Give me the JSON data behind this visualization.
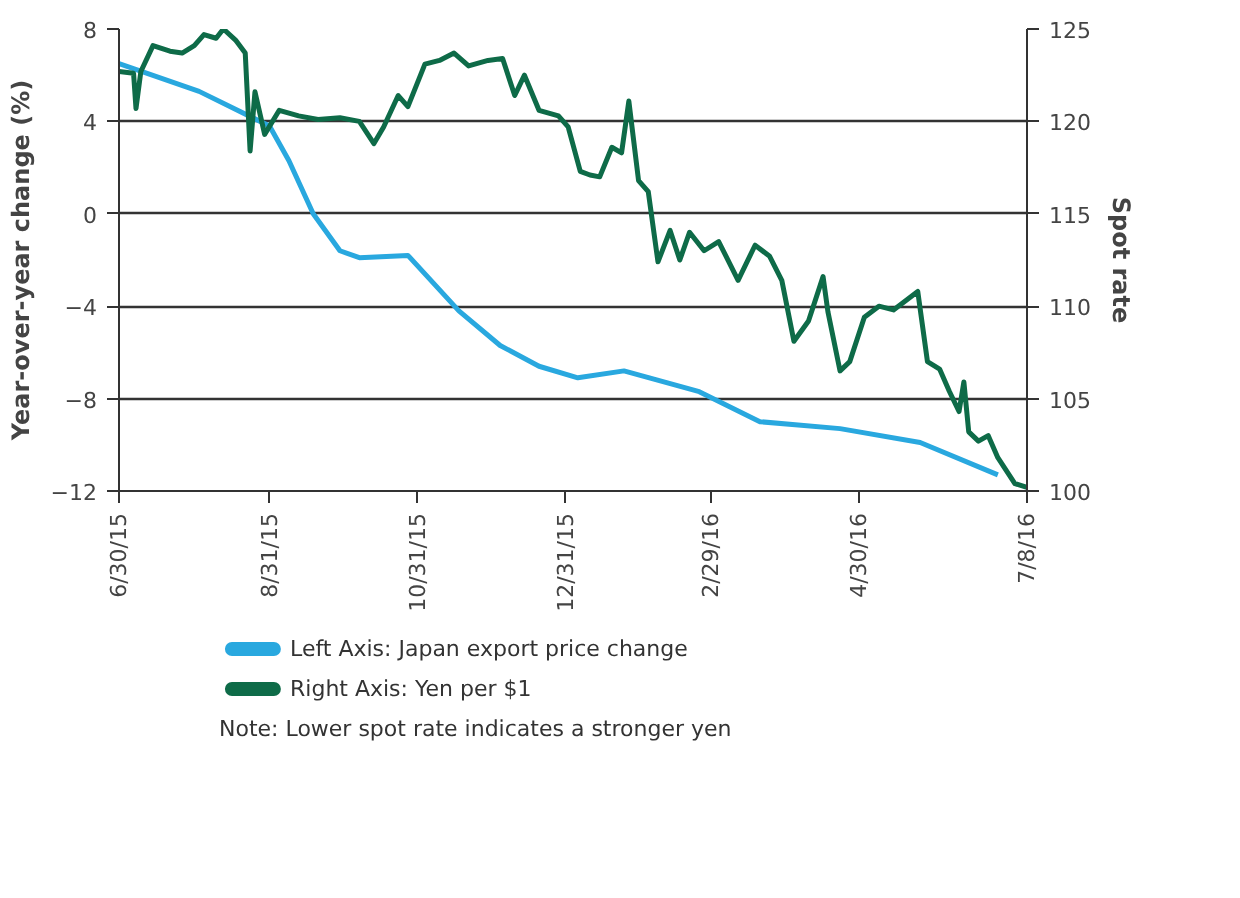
{
  "chart_data": {
    "type": "line",
    "ylabel": "Year-over-year change (%)",
    "y2label": "Spot rate",
    "xlim": [
      "2015-06-30",
      "2016-07-08"
    ],
    "xticks": [
      {
        "value": "2015-06-30",
        "label": "6/30/15"
      },
      {
        "value": "2015-08-31",
        "label": "8/31/15"
      },
      {
        "value": "2015-10-31",
        "label": "10/31/15"
      },
      {
        "value": "2015-12-31",
        "label": "12/31/15"
      },
      {
        "value": "2016-02-29",
        "label": "2/29/16"
      },
      {
        "value": "2016-04-30",
        "label": "4/30/16"
      },
      {
        "value": "2016-07-08",
        "label": "7/8/16"
      }
    ],
    "ylim": [
      -12,
      8
    ],
    "yticks": [
      -12,
      -8,
      -4,
      0,
      4,
      8
    ],
    "y2lim": [
      100,
      125
    ],
    "y2ticks": [
      100,
      105,
      110,
      115,
      120,
      125
    ],
    "grid": "y",
    "legend": "bottom",
    "marker": "none",
    "line_style": "solid",
    "series": [
      {
        "name": "Left Axis: Japan export price change",
        "color": "#29a8df",
        "x": [
          "2015-06-30",
          "2015-08-02",
          "2015-08-31",
          "2015-09-08",
          "2015-09-18",
          "2015-09-29",
          "2015-10-07",
          "2015-10-27",
          "2015-11-17",
          "2015-12-04",
          "2015-12-20",
          "2016-01-05",
          "2016-01-24",
          "2016-02-24",
          "2016-03-20",
          "2016-04-22",
          "2016-05-25",
          "2016-06-26"
        ],
        "values": [
          6.5,
          5.3,
          3.8,
          2.3,
          0.0,
          -1.6,
          -1.9,
          -1.8,
          -4.2,
          -5.7,
          -6.6,
          -7.1,
          -6.8,
          -7.7,
          -9.0,
          -9.3,
          -9.9,
          -11.3
        ]
      },
      {
        "name": "Right Axis: Yen per $1",
        "color": "#0e6b48",
        "axis": "y2",
        "x": [
          "2015-06-30",
          "2015-07-06",
          "2015-07-07",
          "2015-07-09",
          "2015-07-14",
          "2015-07-21",
          "2015-07-26",
          "2015-07-31",
          "2015-08-04",
          "2015-08-09",
          "2015-08-12",
          "2015-08-17",
          "2015-08-21",
          "2015-08-23",
          "2015-08-25",
          "2015-08-29",
          "2015-09-04",
          "2015-09-12",
          "2015-09-20",
          "2015-09-29",
          "2015-10-07",
          "2015-10-13",
          "2015-10-17",
          "2015-10-23",
          "2015-10-27",
          "2015-11-03",
          "2015-11-09",
          "2015-11-15",
          "2015-11-21",
          "2015-11-29",
          "2015-12-05",
          "2015-12-10",
          "2015-12-14",
          "2015-12-20",
          "2015-12-28",
          "2016-01-01",
          "2016-01-06",
          "2016-01-10",
          "2016-01-14",
          "2016-01-19",
          "2016-01-23",
          "2016-01-26",
          "2016-01-30",
          "2016-02-03",
          "2016-02-07",
          "2016-02-12",
          "2016-02-16",
          "2016-02-20",
          "2016-02-26",
          "2016-03-03",
          "2016-03-11",
          "2016-03-18",
          "2016-03-24",
          "2016-03-29",
          "2016-04-03",
          "2016-04-09",
          "2016-04-15",
          "2016-04-17",
          "2016-04-22",
          "2016-04-26",
          "2016-05-02",
          "2016-05-08",
          "2016-05-14",
          "2016-05-24",
          "2016-05-28",
          "2016-06-02",
          "2016-06-06",
          "2016-06-10",
          "2016-06-12",
          "2016-06-14",
          "2016-06-18",
          "2016-06-22",
          "2016-06-26",
          "2016-07-03",
          "2016-07-08"
        ],
        "values": [
          122.7,
          122.6,
          120.7,
          122.7,
          124.1,
          123.8,
          123.7,
          124.1,
          124.7,
          124.5,
          125.0,
          124.4,
          123.7,
          118.4,
          121.6,
          119.3,
          120.6,
          120.3,
          120.1,
          120.2,
          120.0,
          118.8,
          119.7,
          121.4,
          120.8,
          123.1,
          123.3,
          123.7,
          123.0,
          123.3,
          123.4,
          121.4,
          122.5,
          120.6,
          120.3,
          119.7,
          117.3,
          117.1,
          117.0,
          118.6,
          118.3,
          121.1,
          116.8,
          116.2,
          112.4,
          114.1,
          112.5,
          114.0,
          113.0,
          113.5,
          111.4,
          113.3,
          112.7,
          111.4,
          108.1,
          109.2,
          111.6,
          109.7,
          106.5,
          107.0,
          109.4,
          110.0,
          109.8,
          110.8,
          107.0,
          106.6,
          105.4,
          104.3,
          105.9,
          103.2,
          102.7,
          103.0,
          101.8,
          100.4,
          100.2
        ]
      }
    ],
    "annotations": [
      "Note: Lower spot rate indicates a stronger yen"
    ]
  }
}
